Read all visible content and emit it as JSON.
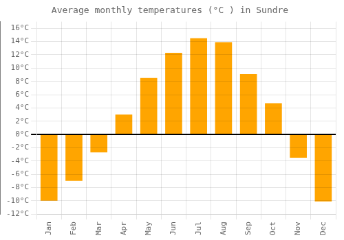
{
  "chart_data": {
    "type": "bar",
    "title": "Average monthly temperatures (°C ) in Sundre",
    "categories": [
      "Jan",
      "Feb",
      "Mar",
      "Apr",
      "May",
      "Jun",
      "Jul",
      "Aug",
      "Sep",
      "Oct",
      "Nov",
      "Dec"
    ],
    "values": [
      -10,
      -7,
      -2.7,
      3,
      8.5,
      12.3,
      14.5,
      13.9,
      9.1,
      4.7,
      -3.5,
      -10.1
    ],
    "color": "#FFA500",
    "ylim": [
      -12,
      17
    ],
    "yticks": [
      {
        "value": -12,
        "label": "-12°C"
      },
      {
        "value": -10,
        "label": "-10°C"
      },
      {
        "value": -8,
        "label": "-8°C"
      },
      {
        "value": -6,
        "label": "-6°C"
      },
      {
        "value": -4,
        "label": "-4°C"
      },
      {
        "value": -2,
        "label": "-2°C"
      },
      {
        "value": 0,
        "label": "0°C"
      },
      {
        "value": 2,
        "label": "2°C"
      },
      {
        "value": 4,
        "label": "4°C"
      },
      {
        "value": 6,
        "label": "6°C"
      },
      {
        "value": 8,
        "label": "8°C"
      },
      {
        "value": 10,
        "label": "10°C"
      },
      {
        "value": 12,
        "label": "12°C"
      },
      {
        "value": 14,
        "label": "14°C"
      },
      {
        "value": 16,
        "label": "16°C"
      }
    ],
    "grid": true
  }
}
